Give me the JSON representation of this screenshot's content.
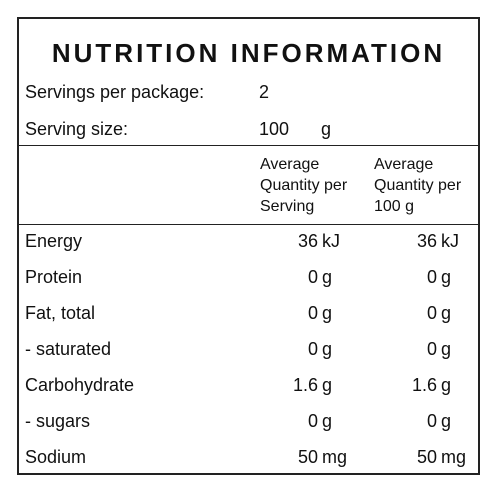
{
  "title": "NUTRITION INFORMATION",
  "servings_per_package": {
    "label": "Servings per package:",
    "value": "2"
  },
  "serving_size": {
    "label": "Serving size:",
    "value": "100",
    "unit": "g"
  },
  "columns": {
    "per_serving": "Average\nQuantity per\nServing",
    "per_100g": "Average\nQuantity per\n100 g"
  },
  "rows": [
    {
      "name": "Energy",
      "serving": "36",
      "serving_unit": "kJ",
      "per100": "36",
      "per100_unit": "kJ"
    },
    {
      "name": "Protein",
      "serving": "0",
      "serving_unit": "g",
      "per100": "0",
      "per100_unit": "g"
    },
    {
      "name": "Fat, total",
      "serving": "0",
      "serving_unit": "g",
      "per100": "0",
      "per100_unit": "g"
    },
    {
      "name": "- saturated",
      "serving": "0",
      "serving_unit": "g",
      "per100": "0",
      "per100_unit": "g"
    },
    {
      "name": "Carbohydrate",
      "serving": "1.6",
      "serving_unit": "g",
      "per100": "1.6",
      "per100_unit": "g"
    },
    {
      "name": "- sugars",
      "serving": "0",
      "serving_unit": "g",
      "per100": "0",
      "per100_unit": "g"
    },
    {
      "name": "Sodium",
      "serving": "50",
      "serving_unit": "mg",
      "per100": "50",
      "per100_unit": "mg"
    }
  ]
}
